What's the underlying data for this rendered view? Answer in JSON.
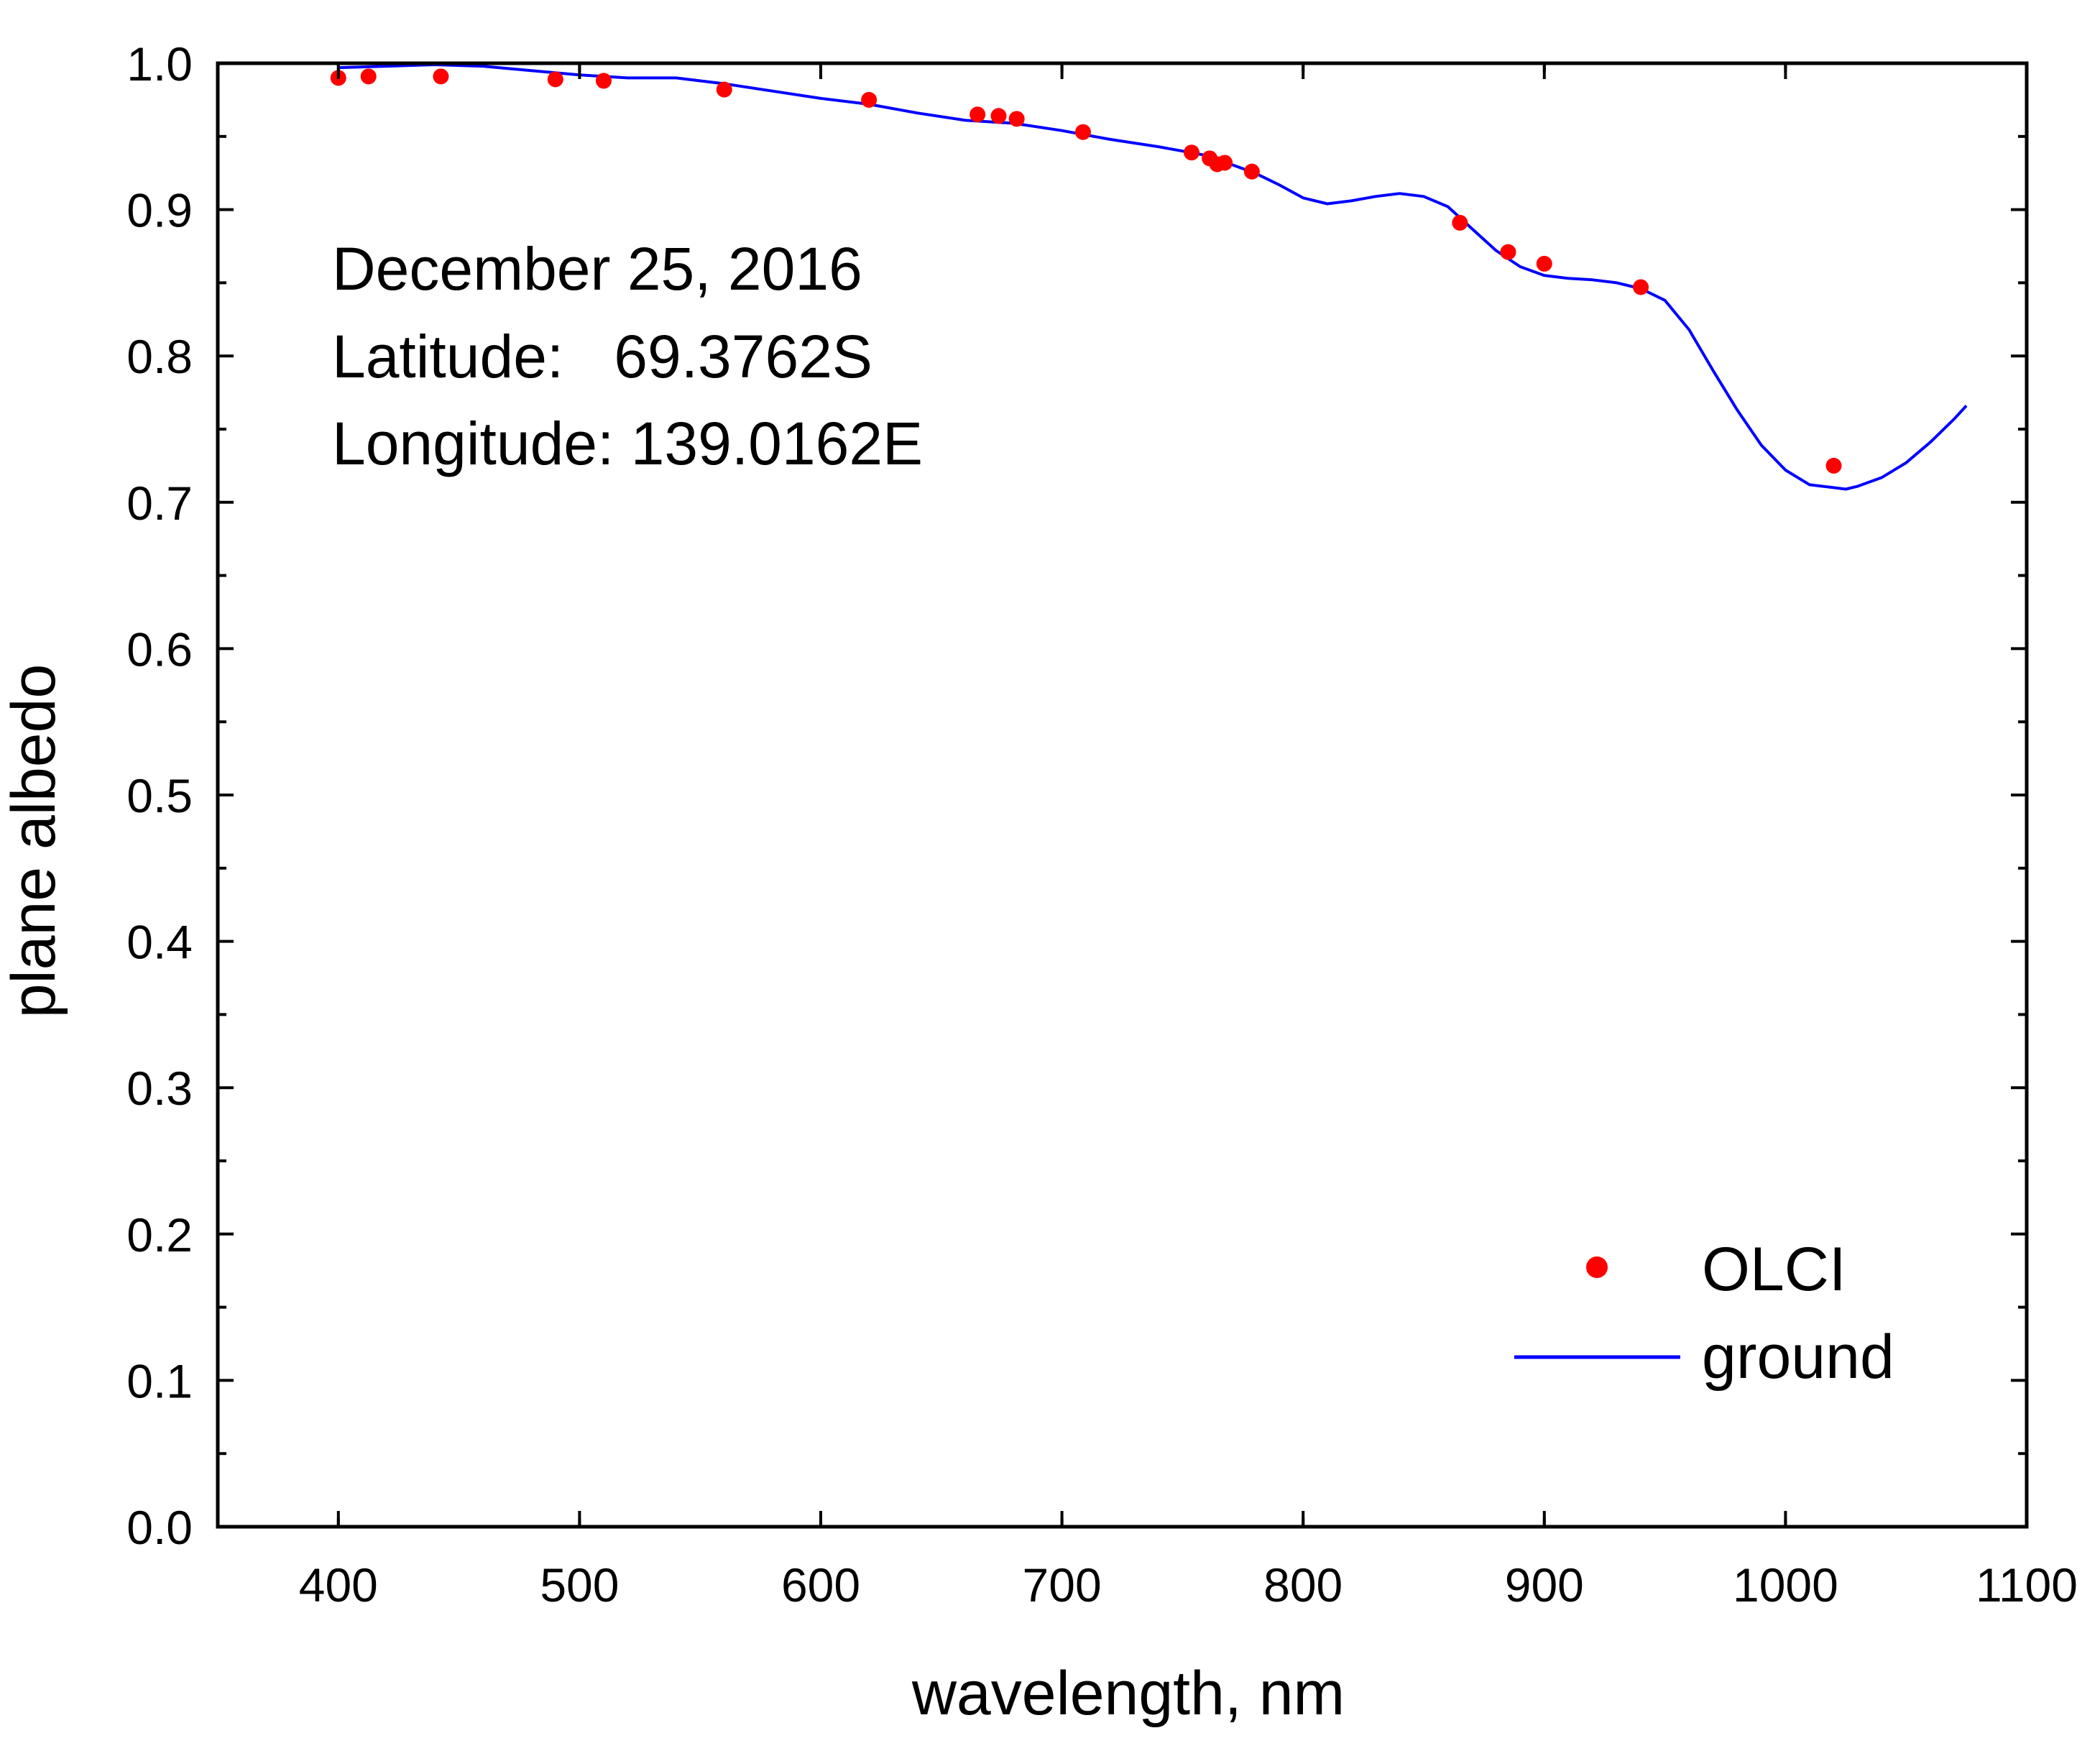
{
  "chart_data": {
    "type": "scatter+line",
    "title": "",
    "xlabel": "wavelength, nm",
    "ylabel": "plane albedo",
    "xlim": [
      350,
      1100
    ],
    "ylim": [
      0.0,
      1.0
    ],
    "x_ticks": [
      400,
      500,
      600,
      700,
      800,
      900,
      1000,
      1100
    ],
    "x_tick_labels": [
      "400",
      "500",
      "600",
      "700",
      "800",
      "900",
      "1000",
      "1100"
    ],
    "y_ticks": [
      0.0,
      0.1,
      0.2,
      0.3,
      0.4,
      0.5,
      0.6,
      0.7,
      0.8,
      0.9,
      1.0
    ],
    "y_tick_labels": [
      "0.0",
      "0.1",
      "0.2",
      "0.3",
      "0.4",
      "0.5",
      "0.6",
      "0.7",
      "0.8",
      "0.9",
      "1.0"
    ],
    "grid": false,
    "annotations": [
      "December 25, 2016",
      "Latitude:   69.3762S",
      "Longitude: 139.0162E"
    ],
    "legend_position": "bottom-right",
    "series": [
      {
        "name": "OLCI",
        "kind": "scatter",
        "color": "#ff0000",
        "x": [
          400,
          412.5,
          442.5,
          490,
          510,
          560,
          620,
          665,
          673.75,
          681.25,
          708.75,
          753.75,
          761.25,
          764.375,
          767.5,
          778.75,
          865,
          885,
          900,
          940,
          1020
        ],
        "y": [
          0.99,
          0.991,
          0.991,
          0.989,
          0.988,
          0.982,
          0.975,
          0.965,
          0.964,
          0.962,
          0.953,
          0.939,
          0.935,
          0.931,
          0.932,
          0.926,
          0.891,
          0.871,
          0.863,
          0.847,
          0.725
        ]
      },
      {
        "name": "ground",
        "kind": "line",
        "color": "#0000ff",
        "x": [
          400,
          420,
          440,
          460,
          480,
          500,
          520,
          540,
          560,
          580,
          600,
          620,
          640,
          660,
          680,
          700,
          720,
          740,
          760,
          780,
          790,
          800,
          810,
          820,
          830,
          840,
          850,
          860,
          870,
          880,
          890,
          900,
          910,
          920,
          930,
          940,
          950,
          960,
          970,
          980,
          990,
          1000,
          1010,
          1020,
          1025,
          1030,
          1040,
          1050,
          1060,
          1070,
          1075
        ],
        "y": [
          0.997,
          0.998,
          0.999,
          0.998,
          0.995,
          0.992,
          0.99,
          0.99,
          0.986,
          0.981,
          0.976,
          0.972,
          0.966,
          0.961,
          0.959,
          0.954,
          0.948,
          0.943,
          0.937,
          0.925,
          0.917,
          0.908,
          0.904,
          0.906,
          0.909,
          0.911,
          0.909,
          0.902,
          0.887,
          0.872,
          0.861,
          0.855,
          0.853,
          0.852,
          0.85,
          0.846,
          0.838,
          0.818,
          0.79,
          0.763,
          0.739,
          0.722,
          0.712,
          0.71,
          0.709,
          0.711,
          0.717,
          0.727,
          0.741,
          0.757,
          0.766
        ]
      }
    ]
  }
}
